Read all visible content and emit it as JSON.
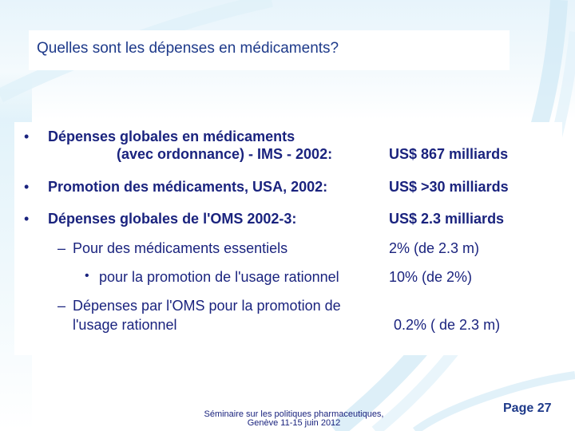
{
  "title": "Quelles sont les dépenses en médicaments?",
  "rows": [
    {
      "bullet": "•",
      "label_line1": "Dépenses globales en médicaments",
      "label_line2": "(avec ordonnance) - IMS -  2002:",
      "value": "US$  867 milliards"
    },
    {
      "bullet": "•",
      "label": "Promotion des médicaments, USA, 2002:",
      "value": "US$ >30 milliards"
    },
    {
      "bullet": "•",
      "label": "Dépenses globales de l'OMS 2002-3:",
      "value": "US$  2.3 milliards"
    },
    {
      "bullet": "–",
      "label": "Pour des médicaments essentiels",
      "value": "2% (de 2.3 m)"
    },
    {
      "bullet": "•",
      "label": "pour la promotion de l'usage rationnel",
      "value": "10% (de 2%)"
    },
    {
      "bullet": "–",
      "label_line1": "Dépenses par l'OMS pour la promotion de",
      "label_line2": "l'usage rationnel",
      "value": "0.2% ( de 2.3 m)"
    }
  ],
  "footer": {
    "line1": "Séminaire sur les politiques pharmaceutiques,",
    "line2": "Genève 11-15 juin 2012"
  },
  "page": "Page 27"
}
